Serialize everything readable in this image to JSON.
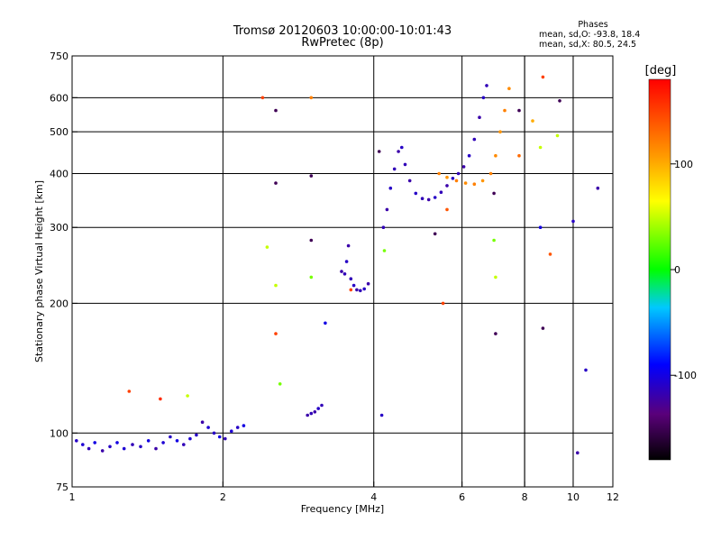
{
  "chart_data": {
    "type": "scatter",
    "title": "Tromsø 20120603 10:00:00-10:01:43",
    "subtitle": "RwPretec (8p)",
    "xlabel": "Frequency [MHz]",
    "ylabel": "Stationary phase Virtual Height [km]",
    "x_scale": "log",
    "y_scale": "log",
    "xlim": [
      1,
      12
    ],
    "ylim": [
      75,
      750
    ],
    "x_ticks": [
      1,
      2,
      4,
      6,
      8,
      10,
      12
    ],
    "x_tick_labels": [
      "1",
      "2",
      "4",
      "6",
      "8",
      "10",
      "12"
    ],
    "y_ticks": [
      75,
      100,
      200,
      300,
      400,
      500,
      600,
      750
    ],
    "y_tick_labels": [
      "75",
      "100",
      "200",
      "300",
      "400",
      "500",
      "600",
      "750"
    ],
    "grid": true,
    "legend": {
      "title": "Phases",
      "lines": [
        "mean, sd,O: -93.8, 18.4",
        "mean, sd,X: 80.5, 24.5"
      ],
      "placement": "top-right"
    },
    "colorbar": {
      "label": "[deg]",
      "range": [
        -180,
        180
      ],
      "ticks": [
        100,
        0,
        -100
      ],
      "tick_labels": [
        "100",
        "0",
        "-100"
      ],
      "placement": "right"
    },
    "series": [
      {
        "points": [
          [
            1.02,
            96,
            -110
          ],
          [
            1.05,
            94,
            -105
          ],
          [
            1.08,
            92,
            -115
          ],
          [
            1.11,
            95,
            -100
          ],
          [
            1.15,
            91,
            -120
          ],
          [
            1.19,
            93,
            -110
          ],
          [
            1.23,
            95,
            -100
          ],
          [
            1.27,
            92,
            -105
          ],
          [
            1.32,
            94,
            -115
          ],
          [
            1.37,
            93,
            -110
          ],
          [
            1.42,
            96,
            -100
          ],
          [
            1.47,
            92,
            -120
          ],
          [
            1.52,
            95,
            -105
          ],
          [
            1.57,
            98,
            -110
          ],
          [
            1.62,
            96,
            -100
          ],
          [
            1.67,
            94,
            -115
          ],
          [
            1.72,
            97,
            -105
          ],
          [
            1.77,
            99,
            -110
          ],
          [
            1.82,
            106,
            -120
          ],
          [
            1.87,
            103,
            -105
          ],
          [
            1.92,
            100,
            -110
          ],
          [
            1.97,
            98,
            -100
          ],
          [
            2.02,
            97,
            -115
          ],
          [
            2.08,
            101,
            -105
          ],
          [
            2.14,
            103,
            -110
          ],
          [
            2.2,
            104,
            -100
          ]
        ]
      },
      {
        "points": [
          [
            2.95,
            110,
            -120
          ],
          [
            3.0,
            111,
            -115
          ],
          [
            3.05,
            112,
            -120
          ],
          [
            3.1,
            114,
            -110
          ],
          [
            3.15,
            116,
            -115
          ]
        ]
      },
      {
        "points": [
          [
            3.45,
            237,
            -120
          ],
          [
            3.5,
            234,
            -115
          ],
          [
            3.53,
            250,
            -110
          ],
          [
            3.56,
            272,
            -120
          ],
          [
            3.6,
            228,
            -115
          ],
          [
            3.65,
            220,
            -110
          ],
          [
            3.7,
            215,
            -120
          ],
          [
            3.76,
            214,
            -115
          ],
          [
            3.83,
            216,
            -110
          ],
          [
            3.9,
            222,
            -120
          ]
        ]
      },
      {
        "points": [
          [
            4.18,
            300,
            -115
          ],
          [
            4.25,
            330,
            -120
          ],
          [
            4.32,
            370,
            -110
          ],
          [
            4.4,
            410,
            -115
          ],
          [
            4.48,
            450,
            -120
          ],
          [
            4.55,
            460,
            -110
          ],
          [
            4.62,
            420,
            -115
          ],
          [
            4.72,
            385,
            -120
          ],
          [
            4.85,
            360,
            -110
          ],
          [
            5.0,
            350,
            -115
          ],
          [
            5.15,
            348,
            -120
          ],
          [
            5.3,
            352,
            -110
          ],
          [
            5.45,
            362,
            -115
          ],
          [
            5.6,
            375,
            -120
          ],
          [
            5.75,
            390,
            -110
          ],
          [
            5.9,
            400,
            -115
          ],
          [
            6.05,
            415,
            -120
          ],
          [
            6.2,
            440,
            -110
          ],
          [
            6.35,
            480,
            -115
          ],
          [
            6.5,
            540,
            -120
          ],
          [
            6.62,
            600,
            -110
          ],
          [
            6.72,
            640,
            -115
          ]
        ]
      },
      {
        "points": [
          [
            5.4,
            400,
            120
          ],
          [
            5.6,
            392,
            110
          ],
          [
            5.85,
            385,
            120
          ],
          [
            6.1,
            380,
            115
          ],
          [
            6.35,
            378,
            120
          ],
          [
            6.6,
            385,
            110
          ],
          [
            6.85,
            400,
            120
          ],
          [
            7.0,
            440,
            115
          ],
          [
            7.15,
            500,
            110
          ],
          [
            7.3,
            560,
            120
          ],
          [
            7.45,
            630,
            115
          ]
        ]
      },
      {
        "points": [
          [
            1.3,
            125,
            150
          ],
          [
            1.5,
            120,
            160
          ],
          [
            1.7,
            122,
            50
          ],
          [
            2.4,
            600,
            150
          ],
          [
            2.55,
            560,
            -150
          ],
          [
            2.55,
            380,
            -150
          ],
          [
            2.45,
            270,
            50
          ],
          [
            2.55,
            220,
            50
          ],
          [
            2.55,
            170,
            150
          ],
          [
            2.6,
            130,
            30
          ],
          [
            3.0,
            600,
            120
          ],
          [
            3.0,
            395,
            -150
          ],
          [
            3.0,
            280,
            -150
          ],
          [
            3.0,
            230,
            30
          ],
          [
            3.2,
            180,
            -100
          ],
          [
            3.6,
            215,
            150
          ],
          [
            4.1,
            450,
            -150
          ],
          [
            4.2,
            265,
            30
          ],
          [
            4.15,
            110,
            -110
          ],
          [
            5.3,
            290,
            -150
          ],
          [
            5.6,
            330,
            140
          ],
          [
            5.5,
            200,
            150
          ],
          [
            6.95,
            280,
            30
          ],
          [
            7.0,
            230,
            50
          ],
          [
            7.0,
            170,
            -150
          ],
          [
            6.95,
            360,
            -150
          ],
          [
            7.8,
            440,
            130
          ],
          [
            7.8,
            560,
            -150
          ],
          [
            8.3,
            530,
            100
          ],
          [
            8.6,
            460,
            50
          ],
          [
            8.6,
            300,
            -100
          ],
          [
            9.0,
            260,
            140
          ],
          [
            8.7,
            670,
            150
          ],
          [
            8.7,
            175,
            -150
          ],
          [
            9.3,
            490,
            50
          ],
          [
            9.4,
            590,
            -150
          ],
          [
            10.0,
            310,
            -110
          ],
          [
            10.6,
            140,
            -110
          ],
          [
            11.2,
            370,
            -120
          ],
          [
            10.2,
            90,
            -120
          ]
        ]
      }
    ]
  }
}
